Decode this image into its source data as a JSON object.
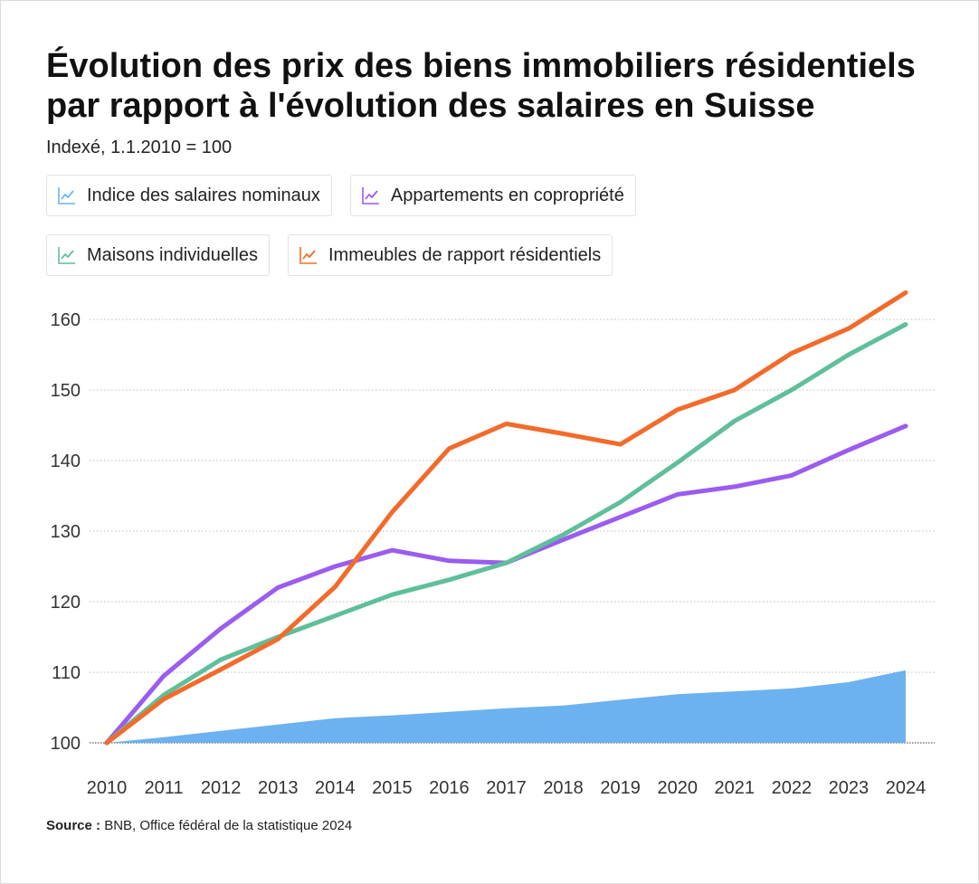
{
  "title": "Évolution des prix des biens immobiliers résidentiels par rapport à l'évolution des salaires en Suisse",
  "subtitle": "Indexé, 1.1.2010 = 100",
  "source": {
    "label": "Source :",
    "text": "BNB, Office fédéral de la statistique 2024"
  },
  "legend": [
    {
      "label": "Indice des salaires nominaux",
      "color": "#6cb2f0",
      "icon": "line-chart-icon"
    },
    {
      "label": "Appartements en copropriété",
      "color": "#9b5cf0",
      "icon": "line-chart-icon"
    },
    {
      "label": "Maisons individuelles",
      "color": "#5fbf9a",
      "icon": "line-chart-icon"
    },
    {
      "label": "Immeubles de rapport résidentiels",
      "color": "#f26b2a",
      "icon": "line-chart-icon"
    }
  ],
  "chart_data": {
    "type": "line",
    "title": "Évolution des prix des biens immobiliers résidentiels par rapport à l'évolution des salaires en Suisse",
    "subtitle": "Indexé, 1.1.2010 = 100",
    "xlabel": "",
    "ylabel": "",
    "ylim": [
      100,
      160
    ],
    "yticks": [
      100,
      110,
      120,
      130,
      140,
      150,
      160
    ],
    "grid": true,
    "categories": [
      "2010",
      "2011",
      "2012",
      "2013",
      "2014",
      "2015",
      "2016",
      "2017",
      "2018",
      "2019",
      "2020",
      "2021",
      "2022",
      "2023",
      "2024"
    ],
    "series": [
      {
        "name": "Indice des salaires nominaux",
        "style": "area",
        "color": "#6cb2f0",
        "values": [
          100,
          100.8,
          101.7,
          102.6,
          103.5,
          103.9,
          104.4,
          104.9,
          105.3,
          106.1,
          106.9,
          107.3,
          107.7,
          108.6,
          110.3
        ]
      },
      {
        "name": "Appartements en copropriété",
        "style": "line",
        "color": "#9b5cf0",
        "values": [
          100,
          109.5,
          116.2,
          122,
          125,
          127.3,
          125.8,
          125.5,
          128.8,
          132,
          135.2,
          136.3,
          137.9,
          141.5,
          144.9
        ]
      },
      {
        "name": "Maisons individuelles",
        "style": "line",
        "color": "#5fbf9a",
        "values": [
          100,
          106.8,
          111.8,
          115,
          118,
          121,
          123.1,
          125.5,
          129.5,
          134.1,
          139.7,
          145.6,
          150,
          155,
          159.3
        ]
      },
      {
        "name": "Immeubles de rapport résidentiels",
        "style": "line",
        "color": "#f26b2a",
        "values": [
          100,
          106.2,
          110.4,
          114.7,
          122.1,
          132.7,
          141.7,
          145.2,
          143.8,
          142.3,
          147.2,
          150,
          155.2,
          158.7,
          163.8
        ]
      }
    ]
  }
}
